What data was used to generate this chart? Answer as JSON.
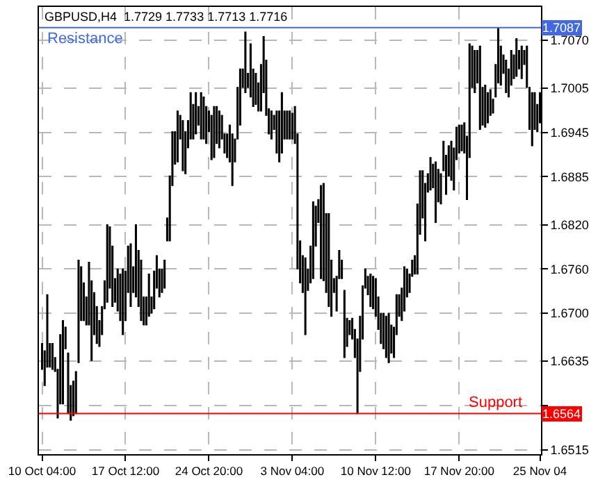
{
  "chart_data": {
    "type": "candlestick",
    "title": "GBPUSD,H4  1.7729 1.7733 1.7713 1.7716",
    "color": "#000000",
    "categories": [
      "10 Oct 04:00",
      null,
      null,
      null,
      null,
      null,
      null,
      null,
      null,
      null,
      null,
      null,
      null,
      null,
      null,
      null,
      null,
      null,
      null,
      null,
      null,
      null,
      null,
      null,
      null,
      null,
      null,
      null,
      null,
      null,
      null,
      null,
      "17 Oct 12:00",
      null,
      null,
      null,
      null,
      null,
      null,
      null,
      null,
      null,
      null,
      null,
      null,
      null,
      null,
      null,
      null,
      null,
      null,
      null,
      null,
      null,
      null,
      null,
      null,
      null,
      null,
      null,
      null,
      null,
      null,
      null,
      "24 Oct 20:00",
      null,
      null,
      null,
      null,
      null,
      null,
      null,
      null,
      null,
      null,
      null,
      null,
      null,
      null,
      null,
      null,
      null,
      null,
      null,
      null,
      null,
      null,
      null,
      null,
      null,
      null,
      null,
      null,
      null,
      null,
      null,
      "3 Nov 04:00",
      null,
      null,
      null,
      null,
      null,
      null,
      null,
      null,
      null,
      null,
      null,
      null,
      null,
      null,
      null,
      null,
      null,
      null,
      null,
      null,
      null,
      null,
      null,
      null,
      null,
      null,
      null,
      null,
      null,
      null,
      null,
      "10 Nov 12:00",
      null,
      null,
      null,
      null,
      null,
      null,
      null,
      null,
      null,
      null,
      null,
      null,
      null,
      null,
      null,
      null,
      null,
      null,
      null,
      null,
      null,
      null,
      null,
      null,
      null,
      null,
      null,
      null,
      null,
      null,
      null,
      "17 Nov 20:00",
      null,
      null,
      null,
      null,
      null,
      null,
      null,
      null,
      null,
      null,
      null,
      null,
      null,
      null,
      null,
      null,
      null,
      null,
      null,
      null,
      null,
      null,
      null,
      null,
      null,
      null,
      null,
      null,
      null,
      null,
      "25 Nov 04"
    ],
    "ohlc": [
      [
        1.6624,
        1.6659,
        1.6624,
        1.6659
      ],
      [
        1.6602,
        1.6649,
        1.6602,
        1.6649
      ],
      [
        1.6627,
        1.6725,
        1.6627,
        1.6725
      ],
      [
        1.6627,
        1.6659,
        1.6627,
        1.6659
      ],
      [
        1.6624,
        1.6659,
        1.6624,
        1.6659
      ],
      [
        1.6621,
        1.664,
        1.6621,
        1.664
      ],
      [
        1.6558,
        1.6624,
        1.6558,
        1.6624
      ],
      [
        1.6577,
        1.6671,
        1.6577,
        1.6671
      ],
      [
        1.6577,
        1.669,
        1.6577,
        1.669
      ],
      [
        1.6652,
        1.6681,
        1.6652,
        1.6681
      ],
      [
        1.6564,
        1.6646,
        1.6564,
        1.6646
      ],
      [
        1.6555,
        1.6602,
        1.6555,
        1.6602
      ],
      [
        1.6561,
        1.6608,
        1.6561,
        1.6608
      ],
      [
        1.6564,
        1.6621,
        1.6564,
        1.6621
      ],
      [
        1.6633,
        1.6772,
        1.6633,
        1.6772
      ],
      [
        1.669,
        1.6763,
        1.669,
        1.6763
      ],
      [
        1.669,
        1.6741,
        1.669,
        1.6741
      ],
      [
        1.6684,
        1.6722,
        1.6684,
        1.6722
      ],
      [
        1.6684,
        1.6769,
        1.6684,
        1.6769
      ],
      [
        1.6636,
        1.6744,
        1.6636,
        1.6744
      ],
      [
        1.6671,
        1.6728,
        1.6671,
        1.6728
      ],
      [
        1.6659,
        1.6709,
        1.6659,
        1.6709
      ],
      [
        1.6655,
        1.669,
        1.6655,
        1.669
      ],
      [
        1.6671,
        1.6709,
        1.6671,
        1.6709
      ],
      [
        1.6706,
        1.6744,
        1.6706,
        1.6744
      ],
      [
        1.6715,
        1.682,
        1.6715,
        1.682
      ],
      [
        1.6734,
        1.6817,
        1.6734,
        1.6817
      ],
      [
        1.6709,
        1.6791,
        1.6709,
        1.6791
      ],
      [
        1.6715,
        1.6747,
        1.6715,
        1.6747
      ],
      [
        1.6703,
        1.676,
        1.6703,
        1.676
      ],
      [
        1.669,
        1.6753,
        1.669,
        1.6753
      ],
      [
        1.6671,
        1.676,
        1.6671,
        1.676
      ],
      [
        1.669,
        1.6757,
        1.669,
        1.6757
      ],
      [
        1.6728,
        1.6791,
        1.6728,
        1.6791
      ],
      [
        1.6709,
        1.6794,
        1.6709,
        1.6794
      ],
      [
        1.6728,
        1.6763,
        1.6728,
        1.6763
      ],
      [
        1.6722,
        1.682,
        1.6722,
        1.682
      ],
      [
        1.6709,
        1.6785,
        1.6709,
        1.6785
      ],
      [
        1.669,
        1.6772,
        1.669,
        1.6772
      ],
      [
        1.6684,
        1.6722,
        1.6684,
        1.6722
      ],
      [
        1.6684,
        1.6722,
        1.6684,
        1.6722
      ],
      [
        1.6696,
        1.6753,
        1.6696,
        1.6753
      ],
      [
        1.67,
        1.6722,
        1.67,
        1.6722
      ],
      [
        1.6706,
        1.6757,
        1.6706,
        1.6757
      ],
      [
        1.6734,
        1.6778,
        1.6734,
        1.6778
      ],
      [
        1.6722,
        1.676,
        1.6722,
        1.676
      ],
      [
        1.6728,
        1.676,
        1.6728,
        1.676
      ],
      [
        1.6734,
        1.6772,
        1.6734,
        1.6772
      ],
      [
        1.6798,
        1.6829,
        1.6798,
        1.6829
      ],
      [
        1.6798,
        1.6886,
        1.6798,
        1.6886
      ],
      [
        1.6873,
        1.6946,
        1.6873,
        1.6946
      ],
      [
        1.6902,
        1.6946,
        1.6902,
        1.6946
      ],
      [
        1.6905,
        1.6974,
        1.6905,
        1.6974
      ],
      [
        1.6936,
        1.6968,
        1.6936,
        1.6968
      ],
      [
        1.6893,
        1.6961,
        1.6893,
        1.6961
      ],
      [
        1.6889,
        1.6946,
        1.6889,
        1.6946
      ],
      [
        1.6924,
        1.6961,
        1.6924,
        1.6961
      ],
      [
        1.6936,
        1.6999,
        1.6936,
        1.6999
      ],
      [
        1.6936,
        1.6983,
        1.6936,
        1.6983
      ],
      [
        1.6943,
        1.6999,
        1.6943,
        1.6999
      ],
      [
        1.6955,
        1.698,
        1.6955,
        1.698
      ],
      [
        1.6936,
        1.6999,
        1.6936,
        1.6999
      ],
      [
        1.6936,
        1.6993,
        1.6936,
        1.6993
      ],
      [
        1.693,
        1.698,
        1.693,
        1.698
      ],
      [
        1.6946,
        1.6974,
        1.6946,
        1.6974
      ],
      [
        1.6908,
        1.6968,
        1.6908,
        1.6968
      ],
      [
        1.6911,
        1.698,
        1.6911,
        1.698
      ],
      [
        1.693,
        1.698,
        1.693,
        1.698
      ],
      [
        1.6924,
        1.6974,
        1.6924,
        1.6974
      ],
      [
        1.6936,
        1.6968,
        1.6936,
        1.6968
      ],
      [
        1.6917,
        1.6943,
        1.6917,
        1.6943
      ],
      [
        1.6911,
        1.6943,
        1.6911,
        1.6943
      ],
      [
        1.6905,
        1.6955,
        1.6905,
        1.6955
      ],
      [
        1.6873,
        1.6943,
        1.6873,
        1.6943
      ],
      [
        1.6905,
        1.6936,
        1.6905,
        1.6936
      ],
      [
        1.6936,
        1.7006,
        1.6936,
        1.7006
      ],
      [
        1.6955,
        1.7031,
        1.6955,
        1.7031
      ],
      [
        1.7006,
        1.7031,
        1.7006,
        1.7031
      ],
      [
        1.6999,
        1.7081,
        1.6999,
        1.7081
      ],
      [
        1.7006,
        1.7025,
        1.7006,
        1.7025
      ],
      [
        1.6993,
        1.7065,
        1.6993,
        1.7065
      ],
      [
        1.698,
        1.7031,
        1.698,
        1.7031
      ],
      [
        1.6983,
        1.7025,
        1.6983,
        1.7025
      ],
      [
        1.6974,
        1.7012,
        1.6974,
        1.7012
      ],
      [
        1.6974,
        1.7037,
        1.6974,
        1.7037
      ],
      [
        1.6999,
        1.7075,
        1.6999,
        1.7075
      ],
      [
        1.6968,
        1.7043,
        1.6968,
        1.7043
      ],
      [
        1.6943,
        1.6977,
        1.6943,
        1.6977
      ],
      [
        1.6936,
        1.6974,
        1.6936,
        1.6974
      ],
      [
        1.6949,
        1.6968,
        1.6949,
        1.6968
      ],
      [
        1.6917,
        1.6974,
        1.6917,
        1.6974
      ],
      [
        1.6905,
        1.6974,
        1.6905,
        1.6974
      ],
      [
        1.6917,
        1.6999,
        1.6917,
        1.6999
      ],
      [
        1.6936,
        1.6974,
        1.6936,
        1.6974
      ],
      [
        1.6936,
        1.6974,
        1.6936,
        1.6974
      ],
      [
        1.6936,
        1.6974,
        1.6936,
        1.6974
      ],
      [
        1.6936,
        1.6971,
        1.6936,
        1.6971
      ],
      [
        1.693,
        1.698,
        1.693,
        1.698
      ],
      [
        1.676,
        1.6943,
        1.676,
        1.6943
      ],
      [
        1.6741,
        1.6798,
        1.6741,
        1.6798
      ],
      [
        1.6728,
        1.6778,
        1.6728,
        1.6778
      ],
      [
        1.6671,
        1.6775,
        1.6671,
        1.6775
      ],
      [
        1.6731,
        1.676,
        1.6731,
        1.676
      ],
      [
        1.6741,
        1.6791,
        1.6741,
        1.6791
      ],
      [
        1.6747,
        1.6851,
        1.6747,
        1.6851
      ],
      [
        1.6791,
        1.6845,
        1.6791,
        1.6845
      ],
      [
        1.6823,
        1.6854,
        1.6823,
        1.6854
      ],
      [
        1.6747,
        1.6873,
        1.6747,
        1.6873
      ],
      [
        1.6744,
        1.6876,
        1.6744,
        1.6876
      ],
      [
        1.6728,
        1.6835,
        1.6728,
        1.6835
      ],
      [
        1.6709,
        1.6835,
        1.6709,
        1.6835
      ],
      [
        1.6696,
        1.6772,
        1.6696,
        1.6772
      ],
      [
        1.6728,
        1.6747,
        1.6728,
        1.6747
      ],
      [
        1.6703,
        1.675,
        1.6703,
        1.675
      ],
      [
        1.6747,
        1.6785,
        1.6747,
        1.6785
      ],
      [
        1.6747,
        1.6772,
        1.6747,
        1.6772
      ],
      [
        1.664,
        1.6731,
        1.664,
        1.6731
      ],
      [
        1.6655,
        1.6693,
        1.6655,
        1.6693
      ],
      [
        1.6671,
        1.669,
        1.6671,
        1.669
      ],
      [
        1.6665,
        1.6693,
        1.6665,
        1.6693
      ],
      [
        1.664,
        1.6678,
        1.664,
        1.6678
      ],
      [
        1.6564,
        1.6665,
        1.6564,
        1.6665
      ],
      [
        1.6621,
        1.6696,
        1.6621,
        1.6696
      ],
      [
        1.6665,
        1.6737,
        1.6665,
        1.6737
      ],
      [
        1.6734,
        1.676,
        1.6734,
        1.676
      ],
      [
        1.6725,
        1.675,
        1.6725,
        1.675
      ],
      [
        1.6709,
        1.6753,
        1.6709,
        1.6753
      ],
      [
        1.6706,
        1.675,
        1.6706,
        1.675
      ],
      [
        1.6696,
        1.6747,
        1.6696,
        1.6747
      ],
      [
        1.6678,
        1.6722,
        1.6678,
        1.6722
      ],
      [
        1.6659,
        1.67,
        1.6659,
        1.67
      ],
      [
        1.6652,
        1.67,
        1.6652,
        1.67
      ],
      [
        1.664,
        1.6696,
        1.664,
        1.6696
      ],
      [
        1.6633,
        1.67,
        1.6633,
        1.67
      ],
      [
        1.6646,
        1.6684,
        1.6646,
        1.6684
      ],
      [
        1.664,
        1.6681,
        1.664,
        1.6681
      ],
      [
        1.6671,
        1.6725,
        1.6671,
        1.6725
      ],
      [
        1.6696,
        1.6725,
        1.6696,
        1.6725
      ],
      [
        1.669,
        1.6734,
        1.669,
        1.6734
      ],
      [
        1.6703,
        1.6763,
        1.6703,
        1.6763
      ],
      [
        1.6722,
        1.676,
        1.6722,
        1.676
      ],
      [
        1.6728,
        1.6753,
        1.6728,
        1.6753
      ],
      [
        1.675,
        1.6772,
        1.675,
        1.6772
      ],
      [
        1.6753,
        1.6778,
        1.6753,
        1.6778
      ],
      [
        1.6753,
        1.6848,
        1.6753,
        1.6848
      ],
      [
        1.6807,
        1.6893,
        1.6807,
        1.6893
      ],
      [
        1.6829,
        1.6893,
        1.6829,
        1.6893
      ],
      [
        1.6798,
        1.6876,
        1.6798,
        1.6876
      ],
      [
        1.6864,
        1.6889,
        1.6864,
        1.6889
      ],
      [
        1.6867,
        1.6911,
        1.6867,
        1.6911
      ],
      [
        1.687,
        1.6902,
        1.687,
        1.6902
      ],
      [
        1.6823,
        1.6905,
        1.6823,
        1.6905
      ],
      [
        1.6851,
        1.6895,
        1.6851,
        1.6895
      ],
      [
        1.6848,
        1.6889,
        1.6848,
        1.6889
      ],
      [
        1.6893,
        1.6933,
        1.6893,
        1.6933
      ],
      [
        1.6861,
        1.6914,
        1.6861,
        1.6914
      ],
      [
        1.6886,
        1.6927,
        1.6886,
        1.6927
      ],
      [
        1.688,
        1.6933,
        1.688,
        1.6933
      ],
      [
        1.6867,
        1.6924,
        1.6867,
        1.6924
      ],
      [
        1.6908,
        1.6952,
        1.6908,
        1.6952
      ],
      [
        1.6917,
        1.6955,
        1.6917,
        1.6955
      ],
      [
        1.692,
        1.6955,
        1.692,
        1.6955
      ],
      [
        1.6917,
        1.6958,
        1.6917,
        1.6958
      ],
      [
        1.6854,
        1.694,
        1.6854,
        1.694
      ],
      [
        1.6911,
        1.7065,
        1.6911,
        1.7065
      ],
      [
        1.7006,
        1.7062,
        1.7006,
        1.7062
      ],
      [
        1.6999,
        1.7056,
        1.6999,
        1.7056
      ],
      [
        1.7012,
        1.7056,
        1.7012,
        1.7056
      ],
      [
        1.6949,
        1.7062,
        1.6949,
        1.7062
      ],
      [
        1.6955,
        1.7006,
        1.6955,
        1.7006
      ],
      [
        1.6952,
        1.7009,
        1.6952,
        1.7009
      ],
      [
        1.6958,
        1.6999,
        1.6958,
        1.6999
      ],
      [
        1.6968,
        1.7003,
        1.6968,
        1.7003
      ],
      [
        1.6971,
        1.699,
        1.6971,
        1.699
      ],
      [
        1.6993,
        1.7037,
        1.6993,
        1.7037
      ],
      [
        1.7012,
        1.7087,
        1.7012,
        1.7087
      ],
      [
        1.7009,
        1.7062,
        1.7009,
        1.7062
      ],
      [
        1.7025,
        1.705,
        1.7025,
        1.705
      ],
      [
        1.6999,
        1.7043,
        1.6999,
        1.7043
      ],
      [
        1.6993,
        1.7031,
        1.6993,
        1.7031
      ],
      [
        1.7009,
        1.7056,
        1.7009,
        1.7056
      ],
      [
        1.7018,
        1.705,
        1.7018,
        1.705
      ],
      [
        1.7021,
        1.7072,
        1.7021,
        1.7072
      ],
      [
        1.7031,
        1.7056,
        1.7031,
        1.7056
      ],
      [
        1.7018,
        1.7062,
        1.7018,
        1.7062
      ],
      [
        1.7037,
        1.7056,
        1.7037,
        1.7056
      ],
      [
        1.7006,
        1.7062,
        1.7006,
        1.7062
      ],
      [
        1.6949,
        1.7006,
        1.6949,
        1.7006
      ],
      [
        1.6927,
        1.6999,
        1.6927,
        1.6999
      ],
      [
        1.6949,
        1.6999,
        1.6949,
        1.6999
      ],
      [
        1.6946,
        1.6983,
        1.6946,
        1.6983
      ],
      [
        1.6958,
        1.6999,
        1.6958,
        1.6999
      ]
    ],
    "ylim": [
      1.6509,
      1.7115
    ],
    "yticks": [
      1.6515,
      {
        "value": 1.6575,
        "label": null
      },
      1.6635,
      {
        "value": 1.67,
        "label": "1.6700"
      },
      {
        "value": 1.676,
        "label": "1.6760"
      },
      {
        "value": 1.682,
        "label": "1.6820"
      },
      1.6885,
      1.6945,
      1.7005,
      {
        "value": 1.707,
        "label": "1.7070"
      }
    ],
    "annotations": [
      {
        "text": "1.7087",
        "y": 1.7087
      },
      {
        "text": "1.6564",
        "y": 1.6564
      }
    ],
    "grid": true,
    "ref_lines": [
      {
        "axis": "y",
        "value": 1.7087,
        "label": "Resistance",
        "color": "#4169e1"
      },
      {
        "axis": "y",
        "value": 1.6564,
        "label": "Support",
        "color": "#ff0000"
      }
    ]
  }
}
